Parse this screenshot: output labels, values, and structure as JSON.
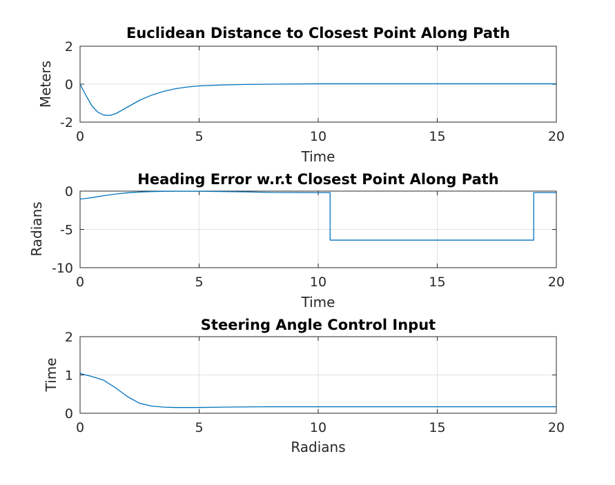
{
  "colors": {
    "series": "#0072bd",
    "axes": "#262626",
    "grid": "#dfdfdf",
    "background": "#ffffff"
  },
  "chart_data": [
    {
      "type": "line",
      "title": "Euclidean Distance to Closest Point Along Path",
      "xlabel": "Time",
      "ylabel": "Meters",
      "xlim": [
        0,
        20
      ],
      "ylim": [
        -2,
        2
      ],
      "xticks": [
        "0",
        "5",
        "10",
        "15",
        "20"
      ],
      "yticks": [
        "2",
        "0",
        "-2"
      ],
      "grid": true,
      "series": [
        {
          "x": [
            0,
            0.25,
            0.5,
            0.75,
            1.0,
            1.25,
            1.5,
            1.75,
            2.0,
            2.5,
            3.0,
            3.5,
            4.0,
            4.5,
            5.0,
            6.0,
            7.0,
            8.0,
            10.0,
            12.0,
            15.0,
            18.0,
            20.0
          ],
          "y": [
            0,
            -0.6,
            -1.15,
            -1.48,
            -1.63,
            -1.65,
            -1.55,
            -1.38,
            -1.2,
            -0.85,
            -0.58,
            -0.38,
            -0.24,
            -0.15,
            -0.09,
            -0.04,
            -0.015,
            0.0,
            0.02,
            0.02,
            0.02,
            0.02,
            0.02
          ]
        }
      ]
    },
    {
      "type": "line",
      "title": "Heading Error w.r.t Closest Point Along Path",
      "xlabel": "Time",
      "ylabel": "Radians",
      "xlim": [
        0,
        20
      ],
      "ylim": [
        -10,
        0
      ],
      "xticks": [
        "0",
        "5",
        "10",
        "15",
        "20"
      ],
      "yticks": [
        "0",
        "-5",
        "-10"
      ],
      "grid": true,
      "series": [
        {
          "x": [
            0,
            0.5,
            1.0,
            1.5,
            2.0,
            2.5,
            3.0,
            3.5,
            4.0,
            5.0,
            7.0,
            8.0,
            10.0,
            10.5,
            10.5,
            12.0,
            15.0,
            18.0,
            19.05,
            19.05,
            20.0
          ],
          "y": [
            -1.05,
            -0.85,
            -0.6,
            -0.38,
            -0.22,
            -0.12,
            -0.06,
            -0.03,
            -0.02,
            -0.02,
            -0.1,
            -0.18,
            -0.2,
            -0.2,
            -6.4,
            -6.4,
            -6.4,
            -6.4,
            -6.4,
            -0.2,
            -0.2
          ]
        }
      ]
    },
    {
      "type": "line",
      "title": "Steering Angle Control Input",
      "xlabel": "Radians",
      "ylabel": "Time",
      "xlim": [
        0,
        20
      ],
      "ylim": [
        0,
        2
      ],
      "xticks": [
        "0",
        "5",
        "10",
        "15",
        "20"
      ],
      "yticks": [
        "2",
        "1",
        "0"
      ],
      "grid": true,
      "series": [
        {
          "x": [
            0,
            0.1,
            0.5,
            1.0,
            1.5,
            2.0,
            2.5,
            3.0,
            3.5,
            4.0,
            5.0,
            6.0,
            8.0,
            10.0,
            12.0,
            15.0,
            18.0,
            20.0
          ],
          "y": [
            1.05,
            1.02,
            0.96,
            0.86,
            0.66,
            0.43,
            0.26,
            0.19,
            0.16,
            0.15,
            0.15,
            0.16,
            0.17,
            0.17,
            0.17,
            0.17,
            0.17,
            0.17
          ]
        }
      ]
    }
  ]
}
